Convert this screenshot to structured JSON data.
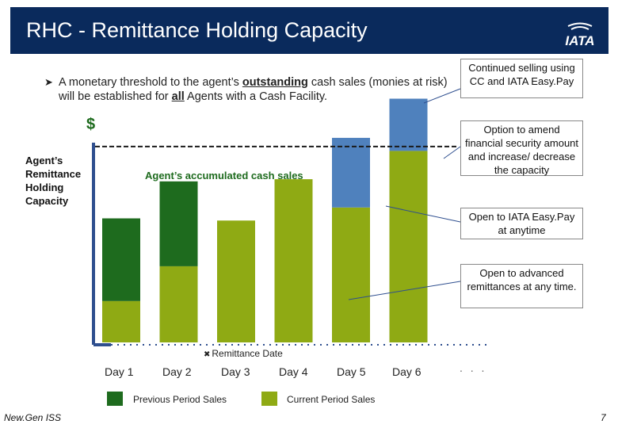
{
  "slide": {
    "title": "RHC - Remittance Holding Capacity",
    "logo_text": "IATA",
    "bullet": {
      "prefix": "A monetary threshold to the agent’s",
      "emph1": "outstanding",
      "middle": "cash sales (monies at risk) will be established for",
      "emph2": "all",
      "suffix": "Agents with a Cash Facility."
    },
    "dollar_label": "$",
    "capacity_label": "Agent’s Remittance Holding Capacity",
    "accumulated_label": "Agent’s accumulated cash sales",
    "callouts": [
      "Continued selling using CC and IATA Easy.Pay",
      "Option to amend financial security amount and increase/ decrease the capacity",
      "Open to IATA Easy.Pay at anytime",
      "Open to advanced remittances at any time."
    ],
    "remittance_date_label": "Remittance Date",
    "days": [
      "Day 1",
      "Day 2",
      "Day 3",
      "Day 4",
      "Day 5",
      "Day 6"
    ],
    "ellipsis": ". . .",
    "legend": [
      {
        "label": "Previous Period Sales",
        "color": "#1e6b1e"
      },
      {
        "label": "Current Period Sales",
        "color": "#8faa14"
      }
    ],
    "footer_left": "New.Gen ISS",
    "page_number": "7"
  },
  "colors": {
    "title_bar": "#0a2a5c",
    "previous_period": "#1e6b1e",
    "current_period": "#8faa14",
    "easypay": "#4f81bd"
  },
  "chart_data": {
    "type": "bar",
    "stacked": true,
    "categories": [
      "Day 1",
      "Day 2",
      "Day 3",
      "Day 4",
      "Day 5",
      "Day 6"
    ],
    "series": [
      {
        "name": "Current Period Sales",
        "values": [
          19,
          35,
          56,
          75,
          62,
          88
        ]
      },
      {
        "name": "Previous Period Sales",
        "values": [
          38,
          39,
          0,
          0,
          0,
          0
        ]
      },
      {
        "values": [
          0,
          0,
          0,
          0,
          32,
          24
        ]
      }
    ],
    "capacity_threshold": 90,
    "ylim": [
      0,
      110
    ]
  }
}
